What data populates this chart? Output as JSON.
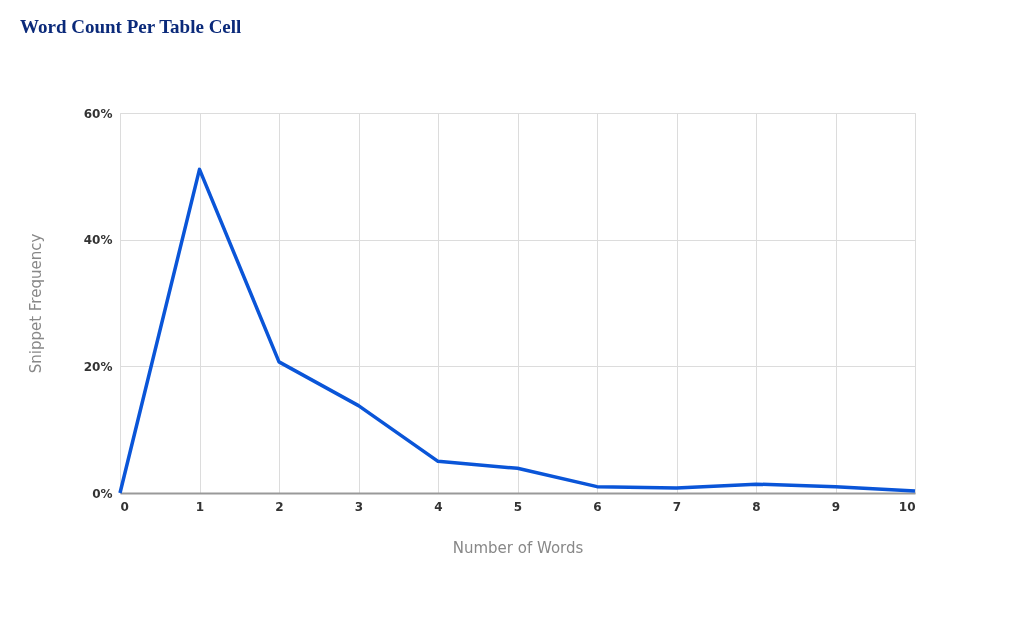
{
  "chart_data": {
    "type": "line",
    "title": "Word Count Per Table Cell",
    "xlabel": "Number of Words",
    "ylabel": "Snippet Frequency",
    "x": [
      0,
      1,
      2,
      3,
      4,
      5,
      6,
      7,
      8,
      9,
      10
    ],
    "series": [
      {
        "color": "#0a55d8",
        "values": [
          0,
          51.1,
          20.7,
          13.8,
          5.0,
          3.9,
          1.0,
          0.8,
          1.4,
          1.0,
          0.3
        ]
      }
    ],
    "xlim": [
      0,
      10
    ],
    "xticks": [
      0,
      1,
      2,
      3,
      4,
      5,
      6,
      7,
      8,
      9,
      10
    ],
    "ylim": [
      0,
      60
    ],
    "yticks": [
      {
        "value": 0,
        "label": "0%"
      },
      {
        "value": 20,
        "label": "20%"
      },
      {
        "value": 40,
        "label": "40%"
      },
      {
        "value": 60,
        "label": "60%"
      }
    ],
    "grid": true,
    "marker": "none",
    "line_style": "solid"
  }
}
